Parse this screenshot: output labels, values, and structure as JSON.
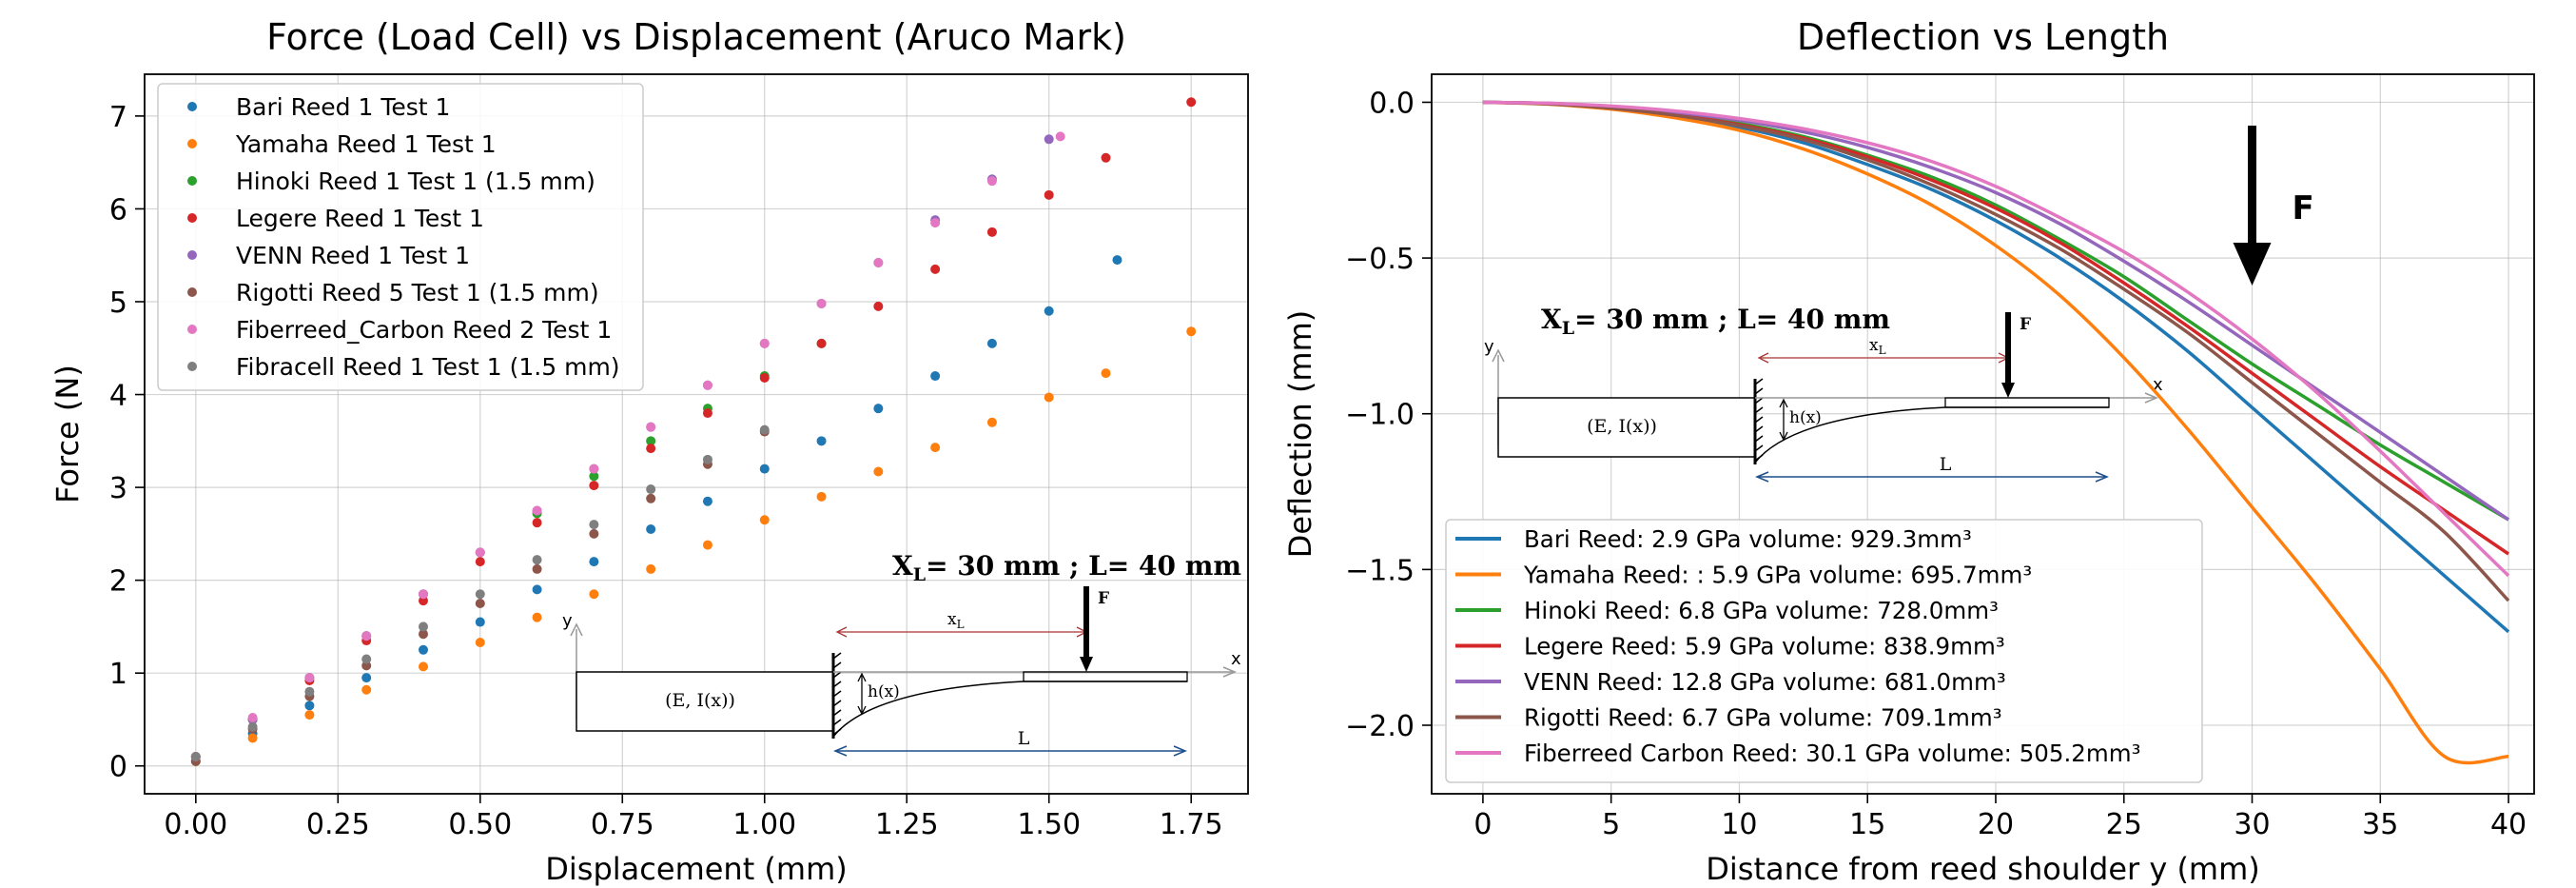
{
  "chart_data": [
    {
      "type": "scatter",
      "title": "Force (Load Cell) vs Displacement (Aruco Mark)",
      "xlabel": "Displacement (mm)",
      "ylabel": "Force (N)",
      "xlim": [
        -0.09,
        1.85
      ],
      "ylim": [
        -0.3,
        7.45
      ],
      "xticks": [
        0,
        0.25,
        0.5,
        0.75,
        1.0,
        1.25,
        1.5,
        1.75
      ],
      "xtick_labels": [
        "0.00",
        "0.25",
        "0.50",
        "0.75",
        "1.00",
        "1.25",
        "1.50",
        "1.75"
      ],
      "yticks": [
        0,
        1,
        2,
        3,
        4,
        5,
        6,
        7
      ],
      "ytick_labels": [
        "0",
        "1",
        "2",
        "3",
        "4",
        "5",
        "6",
        "7"
      ],
      "grid": true,
      "legend_position": "upper-left",
      "series": [
        {
          "name": "Bari Reed 1 Test 1",
          "color": "#1f77b4",
          "x": [
            0,
            0.1,
            0.2,
            0.3,
            0.4,
            0.5,
            0.6,
            0.7,
            0.8,
            0.9,
            1.0,
            1.1,
            1.2,
            1.3,
            1.4,
            1.5,
            1.62
          ],
          "y": [
            0.05,
            0.35,
            0.65,
            0.95,
            1.25,
            1.55,
            1.9,
            2.2,
            2.55,
            2.85,
            3.2,
            3.5,
            3.85,
            4.2,
            4.55,
            4.9,
            5.45
          ]
        },
        {
          "name": "Yamaha Reed 1 Test 1",
          "color": "#ff7f0e",
          "x": [
            0,
            0.1,
            0.2,
            0.3,
            0.4,
            0.5,
            0.6,
            0.7,
            0.8,
            0.9,
            1.0,
            1.1,
            1.2,
            1.3,
            1.4,
            1.5,
            1.6,
            1.75
          ],
          "y": [
            0.05,
            0.3,
            0.55,
            0.82,
            1.07,
            1.33,
            1.6,
            1.85,
            2.12,
            2.38,
            2.65,
            2.9,
            3.17,
            3.43,
            3.7,
            3.97,
            4.23,
            4.68
          ]
        },
        {
          "name": "Hinoki Reed 1 Test 1 (1.5 mm)",
          "color": "#2ca02c",
          "x": [
            0,
            0.1,
            0.2,
            0.3,
            0.4,
            0.5,
            0.6,
            0.7,
            0.8,
            0.9,
            1.0,
            1.1
          ],
          "y": [
            0.1,
            0.5,
            0.95,
            1.4,
            1.85,
            2.3,
            2.72,
            3.12,
            3.5,
            3.85,
            4.2,
            4.55
          ]
        },
        {
          "name": "Legere Reed 1 Test 1",
          "color": "#d62728",
          "x": [
            0,
            0.1,
            0.2,
            0.3,
            0.4,
            0.5,
            0.6,
            0.7,
            0.8,
            0.9,
            1.0,
            1.1,
            1.2,
            1.3,
            1.4,
            1.5,
            1.6,
            1.75
          ],
          "y": [
            0.1,
            0.5,
            0.92,
            1.35,
            1.78,
            2.2,
            2.62,
            3.02,
            3.42,
            3.8,
            4.18,
            4.55,
            4.95,
            5.35,
            5.75,
            6.15,
            6.55,
            7.15
          ]
        },
        {
          "name": "VENN Reed 1 Test 1",
          "color": "#9467bd",
          "x": [
            0,
            0.1,
            0.2,
            0.3,
            0.4,
            0.5,
            0.6,
            0.7,
            0.8,
            0.9,
            1.0,
            1.1,
            1.2,
            1.3,
            1.4,
            1.5
          ],
          "y": [
            0.1,
            0.5,
            0.95,
            1.4,
            1.85,
            2.3,
            2.75,
            3.2,
            3.65,
            4.1,
            4.55,
            4.98,
            5.42,
            5.88,
            6.32,
            6.75
          ]
        },
        {
          "name": "Rigotti Reed 5 Test 1 (1.5 mm)",
          "color": "#8c564b",
          "x": [
            0,
            0.1,
            0.2,
            0.3,
            0.4,
            0.5,
            0.6,
            0.7,
            0.8,
            0.9,
            1.0
          ],
          "y": [
            0.05,
            0.4,
            0.75,
            1.08,
            1.42,
            1.75,
            2.12,
            2.5,
            2.88,
            3.25,
            3.6
          ]
        },
        {
          "name": "Fiberreed_Carbon Reed 2 Test 1",
          "color": "#e377c2",
          "x": [
            0,
            0.1,
            0.2,
            0.3,
            0.4,
            0.5,
            0.6,
            0.7,
            0.8,
            0.9,
            1.0,
            1.1,
            1.2,
            1.3,
            1.4,
            1.52
          ],
          "y": [
            0.1,
            0.52,
            0.95,
            1.4,
            1.85,
            2.3,
            2.75,
            3.2,
            3.65,
            4.1,
            4.55,
            4.98,
            5.42,
            5.85,
            6.3,
            6.78
          ]
        },
        {
          "name": "Fibracell Reed 1 Test 1 (1.5 mm)",
          "color": "#7f7f7f",
          "x": [
            0,
            0.1,
            0.2,
            0.3,
            0.4,
            0.5,
            0.6,
            0.7,
            0.8,
            0.9,
            1.0
          ],
          "y": [
            0.1,
            0.42,
            0.8,
            1.15,
            1.5,
            1.85,
            2.22,
            2.6,
            2.98,
            3.3,
            3.62
          ]
        }
      ],
      "inset_labels": {
        "spec": "X",
        "spec_sub": "L",
        "spec_rest": "= 30 mm ;  L= 40 mm",
        "force": "F",
        "xl": "x",
        "xl_sub": "L",
        "hx": "h(x)",
        "ei": "(E, I(x))",
        "length": "L",
        "axis_y": "y",
        "axis_x": "x"
      }
    },
    {
      "type": "line",
      "title": "Deflection vs Length",
      "xlabel": "Distance from reed shoulder y (mm)",
      "ylabel": "Deflection (mm)",
      "xlim": [
        -2,
        41
      ],
      "ylim": [
        -2.22,
        0.09
      ],
      "xticks": [
        0,
        5,
        10,
        15,
        20,
        25,
        30,
        35,
        40
      ],
      "xtick_labels": [
        "0",
        "5",
        "10",
        "15",
        "20",
        "25",
        "30",
        "35",
        "40"
      ],
      "yticks": [
        0,
        -0.5,
        -1.0,
        -1.5,
        -2.0
      ],
      "ytick_labels": [
        "0.0",
        "−0.5",
        "−1.0",
        "−1.5",
        "−2.0"
      ],
      "grid": true,
      "legend_position": "lower-left",
      "x": [
        0,
        2.5,
        5,
        7.5,
        10,
        12.5,
        15,
        17.5,
        20,
        22.5,
        25,
        27.5,
        30,
        32.5,
        35,
        37.5,
        40
      ],
      "series": [
        {
          "name": "Bari Reed: 2.9 GPa volume: 929.3mm³",
          "color": "#1f77b4",
          "values": [
            0,
            -0.005,
            -0.02,
            -0.045,
            -0.08,
            -0.13,
            -0.2,
            -0.28,
            -0.38,
            -0.5,
            -0.64,
            -0.8,
            -0.98,
            -1.16,
            -1.34,
            -1.52,
            -1.7
          ]
        },
        {
          "name": "Yamaha Reed: : 5.9 GPa volume: 695.7mm³",
          "color": "#ff7f0e",
          "values": [
            0,
            -0.006,
            -0.022,
            -0.05,
            -0.09,
            -0.15,
            -0.23,
            -0.33,
            -0.46,
            -0.62,
            -0.82,
            -1.05,
            -1.3,
            -1.55,
            -1.82,
            -2.1,
            -2.1
          ]
        },
        {
          "name": "Hinoki Reed: 6.8 GPa volume: 728.0mm³",
          "color": "#2ca02c",
          "values": [
            0,
            -0.004,
            -0.017,
            -0.038,
            -0.068,
            -0.11,
            -0.17,
            -0.24,
            -0.33,
            -0.44,
            -0.56,
            -0.7,
            -0.84,
            -0.97,
            -1.1,
            -1.22,
            -1.34
          ]
        },
        {
          "name": "Legere Reed: 5.9 GPa volume: 838.9mm³",
          "color": "#d62728",
          "values": [
            0,
            -0.004,
            -0.018,
            -0.04,
            -0.072,
            -0.115,
            -0.175,
            -0.25,
            -0.34,
            -0.45,
            -0.58,
            -0.72,
            -0.87,
            -1.02,
            -1.17,
            -1.31,
            -1.45
          ]
        },
        {
          "name": "VENN Reed: 12.8 GPa volume: 681.0mm³",
          "color": "#9467bd",
          "values": [
            0,
            -0.003,
            -0.014,
            -0.032,
            -0.058,
            -0.095,
            -0.145,
            -0.21,
            -0.29,
            -0.39,
            -0.51,
            -0.64,
            -0.78,
            -0.92,
            -1.06,
            -1.2,
            -1.34
          ]
        },
        {
          "name": "Rigotti Reed: 6.7 GPa volume: 709.1mm³",
          "color": "#8c564b",
          "values": [
            0,
            -0.005,
            -0.019,
            -0.042,
            -0.075,
            -0.12,
            -0.185,
            -0.265,
            -0.36,
            -0.47,
            -0.6,
            -0.74,
            -0.9,
            -1.06,
            -1.22,
            -1.38,
            -1.6
          ]
        },
        {
          "name": "Fiberreed Carbon Reed: 30.1 GPa volume: 505.2mm³",
          "color": "#e377c2",
          "values": [
            0,
            -0.003,
            -0.012,
            -0.028,
            -0.052,
            -0.085,
            -0.13,
            -0.19,
            -0.27,
            -0.37,
            -0.48,
            -0.61,
            -0.76,
            -0.93,
            -1.12,
            -1.32,
            -1.52
          ]
        }
      ],
      "annotation": {
        "label": "F",
        "x": 30
      },
      "inset_labels": {
        "spec": "X",
        "spec_sub": "L",
        "spec_rest": "= 30 mm ;  L= 40 mm",
        "force": "F",
        "xl": "x",
        "xl_sub": "L",
        "hx": "h(x)",
        "ei": "(E, I(x))",
        "length": "L",
        "axis_y": "y",
        "axis_x": "x"
      }
    }
  ]
}
